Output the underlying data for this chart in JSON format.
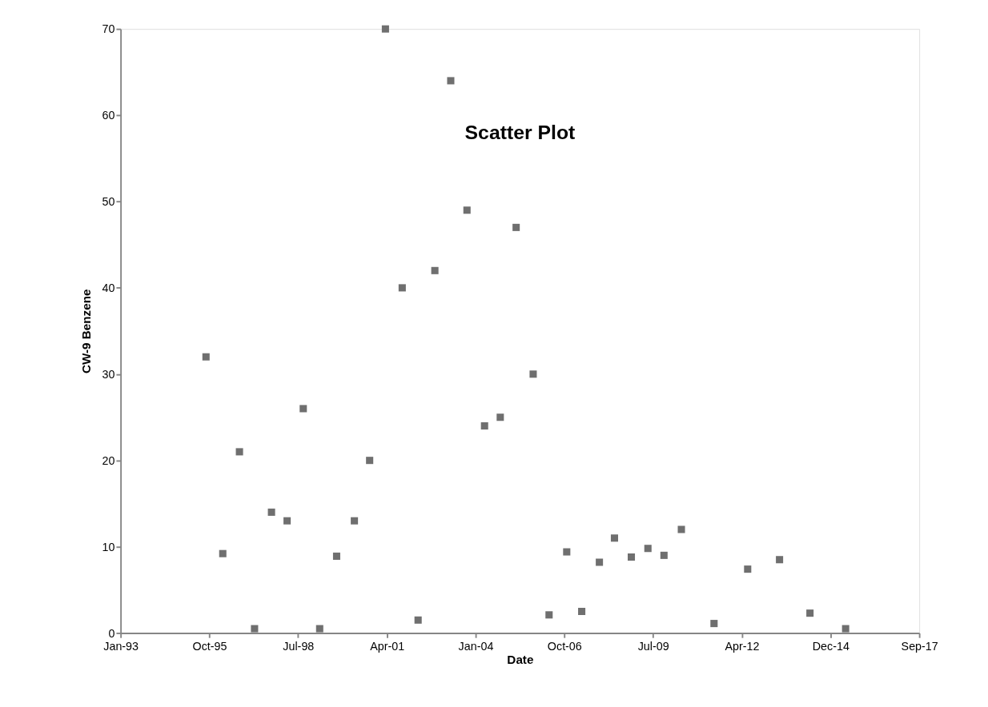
{
  "chart_data": {
    "type": "scatter",
    "title": "Scatter Plot",
    "xlabel": "Date",
    "ylabel": "CW-9 Benzene",
    "x": [
      "1995-09-20",
      "1996-03-27",
      "1996-10-01",
      "1997-03-20",
      "1997-09-27",
      "1998-03-22",
      "1998-09-20",
      "1999-03-24",
      "1999-10-01",
      "2000-04-18",
      "2000-10-07",
      "2001-04-03",
      "2001-10-09",
      "2002-04-06",
      "2002-10-12",
      "2003-04-09",
      "2003-10-09",
      "2004-04-24",
      "2004-10-18",
      "2005-04-15",
      "2005-10-24",
      "2006-04-21",
      "2006-11-06",
      "2007-04-24",
      "2007-11-09",
      "2008-04-27",
      "2008-11-03",
      "2009-05-09",
      "2009-11-06",
      "2010-05-21",
      "2011-05-24",
      "2012-06-06",
      "2013-05-31",
      "2014-05-09",
      "2015-06-15"
    ],
    "series": [
      {
        "color": "#6f6f6f",
        "values": [
          32,
          9.2,
          21,
          0.5,
          14,
          13,
          26,
          0.5,
          8.9,
          13,
          20,
          70,
          40,
          1.5,
          42,
          64,
          49,
          24,
          25,
          47,
          30,
          2.1,
          9.4,
          2.5,
          8.2,
          11,
          8.8,
          9.8,
          9,
          12,
          1.1,
          7.4,
          8.5,
          2.3,
          0.5
        ]
      }
    ],
    "xlim": [
      "1993-01-31",
      "2017-09-22"
    ],
    "xticks": [
      {
        "value": "1993-01-31",
        "label": "Jan-93"
      },
      {
        "value": "1995-10-28",
        "label": "Oct-95"
      },
      {
        "value": "1998-07-24",
        "label": "Jul-98"
      },
      {
        "value": "2001-04-19",
        "label": "Apr-01"
      },
      {
        "value": "2004-01-14",
        "label": "Jan-04"
      },
      {
        "value": "2006-10-10",
        "label": "Oct-06"
      },
      {
        "value": "2009-07-06",
        "label": "Jul-09"
      },
      {
        "value": "2012-04-01",
        "label": "Apr-12"
      },
      {
        "value": "2014-12-27",
        "label": "Dec-14"
      },
      {
        "value": "2017-09-22",
        "label": "Sep-17"
      }
    ],
    "ylim": [
      0,
      70
    ],
    "yticks": [
      0,
      10,
      20,
      30,
      40,
      50,
      60,
      70
    ],
    "grid": false,
    "legend": false,
    "marker": "square"
  }
}
